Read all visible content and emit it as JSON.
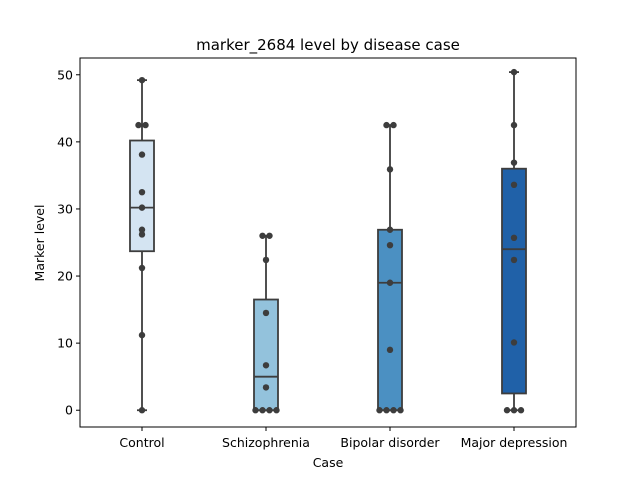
{
  "chart_data": {
    "type": "box",
    "title": "marker_2684 level by disease case",
    "xlabel": "Case",
    "ylabel": "Marker level",
    "ylim": [
      -2.5,
      52.5
    ],
    "yticks": [
      0,
      10,
      20,
      30,
      40,
      50
    ],
    "categories": [
      "Control",
      "Schizophrenia",
      "Bipolar disorder",
      "Major depression"
    ],
    "colors": [
      "#d4e4f2",
      "#93c2dc",
      "#4b90c2",
      "#2061a8"
    ],
    "boxes": [
      {
        "name": "Control",
        "whisker_low": 0,
        "q1": 23.7,
        "median": 30.2,
        "q3": 40.2,
        "whisker_high": 49.2
      },
      {
        "name": "Schizophrenia",
        "whisker_low": 0,
        "q1": 0,
        "median": 5.0,
        "q3": 16.5,
        "whisker_high": 26.0
      },
      {
        "name": "Bipolar disorder",
        "whisker_low": 0,
        "q1": 0,
        "median": 19.0,
        "q3": 26.9,
        "whisker_high": 42.5
      },
      {
        "name": "Major depression",
        "whisker_low": 0,
        "q1": 2.5,
        "median": 24.0,
        "q3": 36.0,
        "whisker_high": 50.4
      }
    ],
    "points": [
      [
        0,
        11.2,
        21.2,
        26.2,
        26.9,
        30.2,
        32.5,
        38.1,
        42.5,
        42.5,
        49.2
      ],
      [
        0,
        0,
        0,
        0,
        3.4,
        6.7,
        14.5,
        22.4,
        26.0,
        26.0
      ],
      [
        0,
        0,
        0,
        0,
        9.0,
        19.0,
        24.6,
        26.9,
        35.9,
        42.5,
        42.5
      ],
      [
        0,
        0,
        0,
        10.1,
        22.4,
        25.7,
        33.6,
        36.9,
        42.5,
        50.4
      ]
    ]
  }
}
